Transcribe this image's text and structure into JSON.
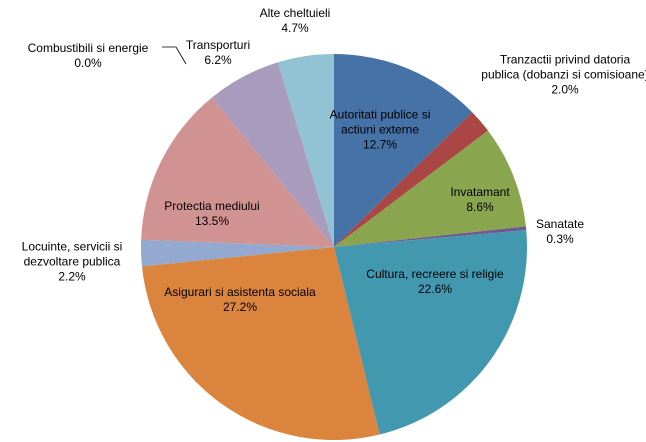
{
  "chart_data": {
    "type": "pie",
    "categories": [
      "Autoritati publice si actiuni externe",
      "Tranzactii privind datoria publica (dobanzi si comisioane)",
      "Invatamant",
      "Sanatate",
      "Cultura, recreere si religie",
      "Asigurari si asistenta sociala",
      "Locuinte, servicii si dezvoltare publica",
      "Protectia mediului",
      "Combustibili si energie",
      "Transporturi",
      "Alte cheltuieli"
    ],
    "values": [
      12.7,
      2.0,
      8.6,
      0.3,
      22.6,
      27.2,
      2.2,
      13.5,
      0.0,
      6.2,
      4.7
    ],
    "value_labels": [
      "12.7%",
      "2.0%",
      "8.6%",
      "0.3%",
      "22.6%",
      "27.2%",
      "2.2%",
      "13.5%",
      "0.0%",
      "6.2%",
      "4.7%"
    ],
    "colors": [
      "#4572a7",
      "#aa4643",
      "#89a54e",
      "#71588f",
      "#4198af",
      "#db843d",
      "#93a9cf",
      "#d19392",
      "#b9cd96",
      "#a99bbd",
      "#92c3d5"
    ]
  }
}
